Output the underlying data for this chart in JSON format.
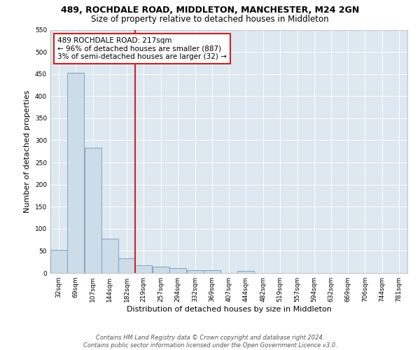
{
  "title": "489, ROCHDALE ROAD, MIDDLETON, MANCHESTER, M24 2GN",
  "subtitle": "Size of property relative to detached houses in Middleton",
  "xlabel": "Distribution of detached houses by size in Middleton",
  "ylabel": "Number of detached properties",
  "bins": [
    32,
    69,
    107,
    144,
    182,
    219,
    257,
    294,
    332,
    369,
    407,
    444,
    482,
    519,
    557,
    594,
    632,
    669,
    706,
    744,
    781
  ],
  "bar_heights": [
    53,
    452,
    283,
    78,
    33,
    18,
    15,
    11,
    6,
    6,
    0,
    5,
    0,
    0,
    0,
    0,
    0,
    0,
    0,
    0
  ],
  "bar_color": "#ccdce8",
  "bar_edge_color": "#7799bb",
  "vline_x": 219,
  "vline_color": "#cc2222",
  "annotation_text": "489 ROCHDALE ROAD: 217sqm\n← 96% of detached houses are smaller (887)\n3% of semi-detached houses are larger (32) →",
  "annotation_box_color": "#cc2222",
  "ylim": [
    0,
    550
  ],
  "yticks": [
    0,
    50,
    100,
    150,
    200,
    250,
    300,
    350,
    400,
    450,
    500,
    550
  ],
  "bg_color": "#dde8f0",
  "footnote": "Contains HM Land Registry data © Crown copyright and database right 2024.\nContains public sector information licensed under the Open Government Licence v3.0.",
  "title_fontsize": 9,
  "subtitle_fontsize": 8.5,
  "xlabel_fontsize": 8,
  "ylabel_fontsize": 8,
  "annotation_fontsize": 7.5,
  "tick_fontsize": 6.5,
  "footnote_fontsize": 6
}
